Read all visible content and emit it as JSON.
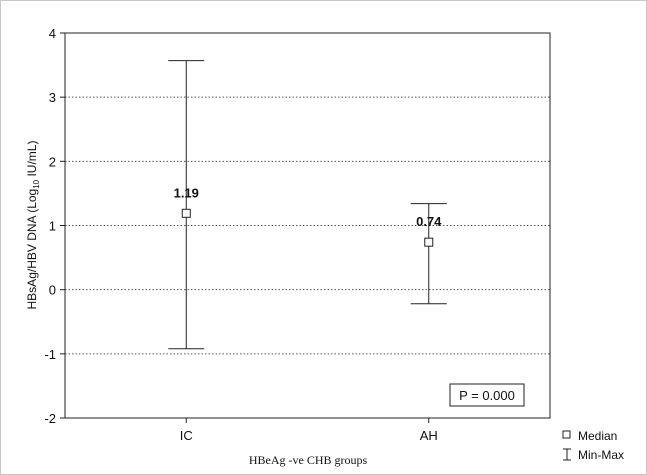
{
  "chart_data": {
    "type": "errorbar",
    "categories": [
      "IC",
      "AH"
    ],
    "series": [
      {
        "name": "Median",
        "values": [
          1.19,
          0.74
        ],
        "labels": [
          "1.19",
          "0.74"
        ]
      },
      {
        "name": "Min-Max",
        "min": [
          -0.92,
          -0.22
        ],
        "max": [
          3.57,
          1.34
        ]
      }
    ],
    "xlabel": "HBeAg -ve CHB groups",
    "ylabel_main": "HBsAg/HBV DNA (Log",
    "ylabel_sub": "10",
    "ylabel_end": " IU/mL)",
    "ylim": [
      -2,
      4
    ],
    "yticks": [
      -2,
      -1,
      0,
      1,
      2,
      3,
      4
    ],
    "grid": "horizontal dotted",
    "annotation": "P = 0.000",
    "legend": {
      "position": "bottom-right",
      "median_label": "Median",
      "minmax_label": "Min-Max"
    }
  }
}
